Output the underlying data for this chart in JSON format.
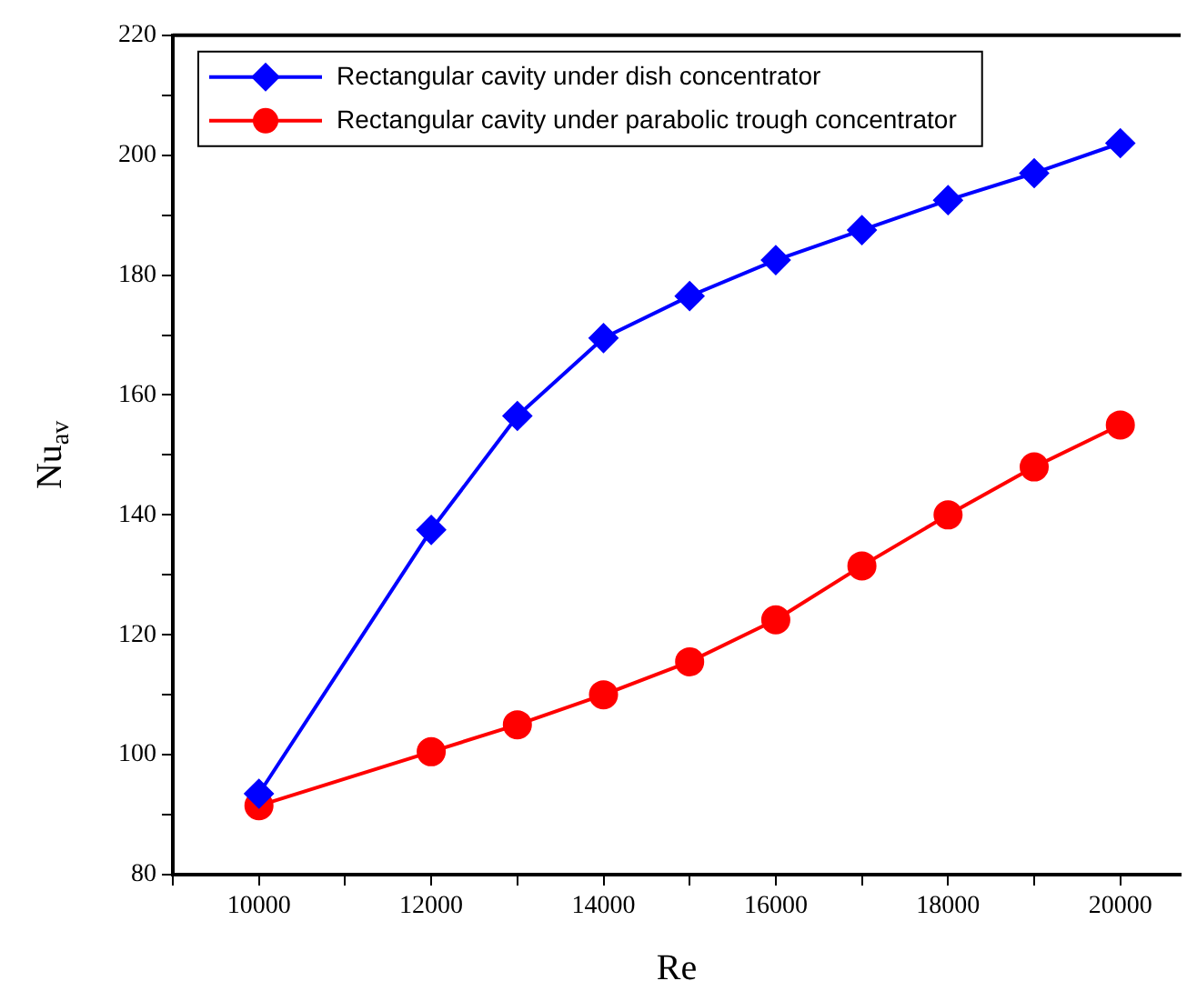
{
  "chart_data": {
    "type": "line",
    "xlabel": "Re",
    "ylabel": "Nu$_{av}$",
    "x": [
      10000,
      12000,
      13000,
      14000,
      15000,
      16000,
      17000,
      18000,
      19000,
      20000
    ],
    "series": [
      {
        "name": "Rectangular cavity under dish concentrator",
        "color": "#0000ff",
        "marker": "diamond",
        "values": [
          93.5,
          137.5,
          156.5,
          169.5,
          176.5,
          182.5,
          187.5,
          192.5,
          197,
          202
        ]
      },
      {
        "name": "Rectangular cavity under parabolic trough concentrator",
        "color": "#ff0000",
        "marker": "circle",
        "values": [
          91.5,
          100.5,
          105,
          110,
          115.5,
          122.5,
          131.5,
          140,
          148,
          155
        ]
      }
    ],
    "xlim": [
      9000,
      20700
    ],
    "xticks": [
      {
        "value": 9000,
        "label": null
      },
      10000,
      {
        "value": 11000,
        "label": null
      },
      12000,
      {
        "value": 13000,
        "label": null
      },
      14000,
      {
        "value": 15000,
        "label": null
      },
      16000,
      {
        "value": 17000,
        "label": null
      },
      18000,
      {
        "value": 19000,
        "label": null
      },
      20000
    ],
    "ylim": [
      80,
      220
    ],
    "yticks": [
      80,
      {
        "value": 90,
        "label": null
      },
      100,
      {
        "value": 110,
        "label": null
      },
      120,
      {
        "value": 130,
        "label": null
      },
      140,
      {
        "value": 150,
        "label": null
      },
      160,
      {
        "value": 170,
        "label": null
      },
      180,
      {
        "value": 190,
        "label": null
      },
      200,
      {
        "value": 210,
        "label": null
      },
      220
    ],
    "grid": false,
    "legend": "top left",
    "line_style": "solid"
  }
}
